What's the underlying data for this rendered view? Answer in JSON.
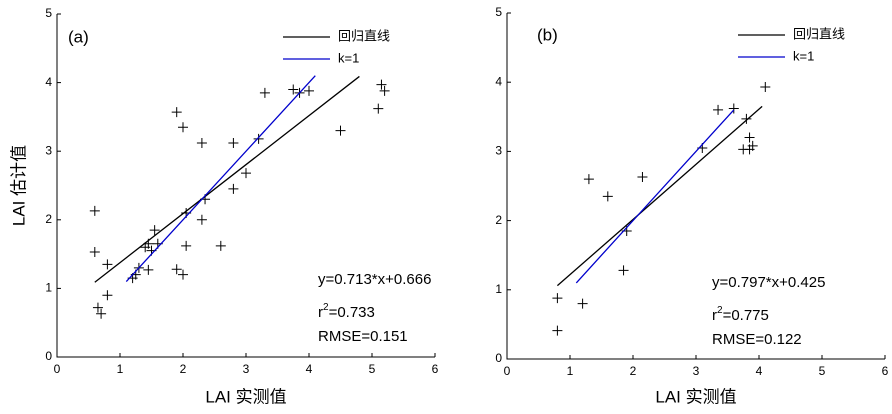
{
  "chart_data": [
    {
      "type": "scatter",
      "panel_label": "(a)",
      "x_label": "LAI 实测值",
      "y_label": "LAI 估计值",
      "xlim": [
        0,
        6
      ],
      "ylim": [
        0,
        5
      ],
      "xticks": [
        0,
        1,
        2,
        3,
        4,
        5,
        6
      ],
      "yticks": [
        0,
        1,
        2,
        3,
        4,
        5
      ],
      "points": {
        "color": "#000000",
        "x": [
          0.6,
          0.6,
          0.65,
          0.7,
          0.8,
          0.8,
          1.2,
          1.25,
          1.3,
          1.4,
          1.45,
          1.5,
          1.45,
          1.55,
          1.6,
          1.9,
          1.9,
          2.0,
          2.0,
          2.05,
          2.05,
          2.3,
          2.3,
          2.35,
          2.6,
          2.8,
          2.8,
          3.0,
          3.2,
          3.3,
          3.75,
          3.85,
          4.0,
          4.5,
          5.1,
          5.15,
          5.2
        ],
        "y": [
          2.13,
          1.53,
          0.72,
          0.63,
          1.35,
          0.9,
          1.15,
          1.2,
          1.3,
          1.6,
          1.65,
          1.55,
          1.27,
          1.85,
          1.65,
          3.57,
          1.28,
          1.2,
          3.35,
          2.1,
          1.62,
          3.12,
          2.0,
          2.3,
          1.62,
          3.12,
          2.45,
          2.68,
          3.18,
          3.85,
          3.9,
          3.85,
          3.88,
          3.3,
          3.62,
          3.97,
          3.88
        ]
      },
      "series": [
        {
          "name": "回归直线",
          "color": "#000000",
          "x": [
            0.6,
            4.8
          ],
          "values": [
            1.09,
            4.09
          ]
        },
        {
          "name": "k=1",
          "color": "#0000cc",
          "x": [
            1.1,
            4.1
          ],
          "values": [
            1.1,
            4.1
          ]
        }
      ],
      "annotation": {
        "equation": "y=0.713*x+0.666",
        "r2": [
          "r",
          "2",
          "=0.733"
        ],
        "rmse": "RMSE=0.151"
      }
    },
    {
      "type": "scatter",
      "panel_label": "(b)",
      "x_label": "LAI 实测值",
      "xlim": [
        0,
        6
      ],
      "ylim": [
        0,
        5
      ],
      "xticks": [
        0,
        1,
        2,
        3,
        4,
        5,
        6
      ],
      "yticks": [
        0,
        1,
        2,
        3,
        4,
        5
      ],
      "points": {
        "color": "#000000",
        "x": [
          0.8,
          0.8,
          1.2,
          1.3,
          1.6,
          1.85,
          1.9,
          2.15,
          3.1,
          3.35,
          3.6,
          3.75,
          3.8,
          3.85,
          3.85,
          3.9,
          4.1
        ],
        "y": [
          0.88,
          0.41,
          0.8,
          2.6,
          2.35,
          1.28,
          1.85,
          2.63,
          3.05,
          3.6,
          3.62,
          3.03,
          3.47,
          3.03,
          3.2,
          3.08,
          3.93
        ]
      },
      "series": [
        {
          "name": "回归直线",
          "color": "#000000",
          "x": [
            0.8,
            4.05
          ],
          "values": [
            1.06,
            3.65
          ]
        },
        {
          "name": "k=1",
          "color": "#0000cc",
          "x": [
            1.1,
            3.6
          ],
          "values": [
            1.1,
            3.6
          ]
        }
      ],
      "annotation": {
        "equation": "y=0.797*x+0.425",
        "r2": [
          "r",
          "2",
          "=0.775"
        ],
        "rmse": "RMSE=0.122"
      }
    }
  ]
}
